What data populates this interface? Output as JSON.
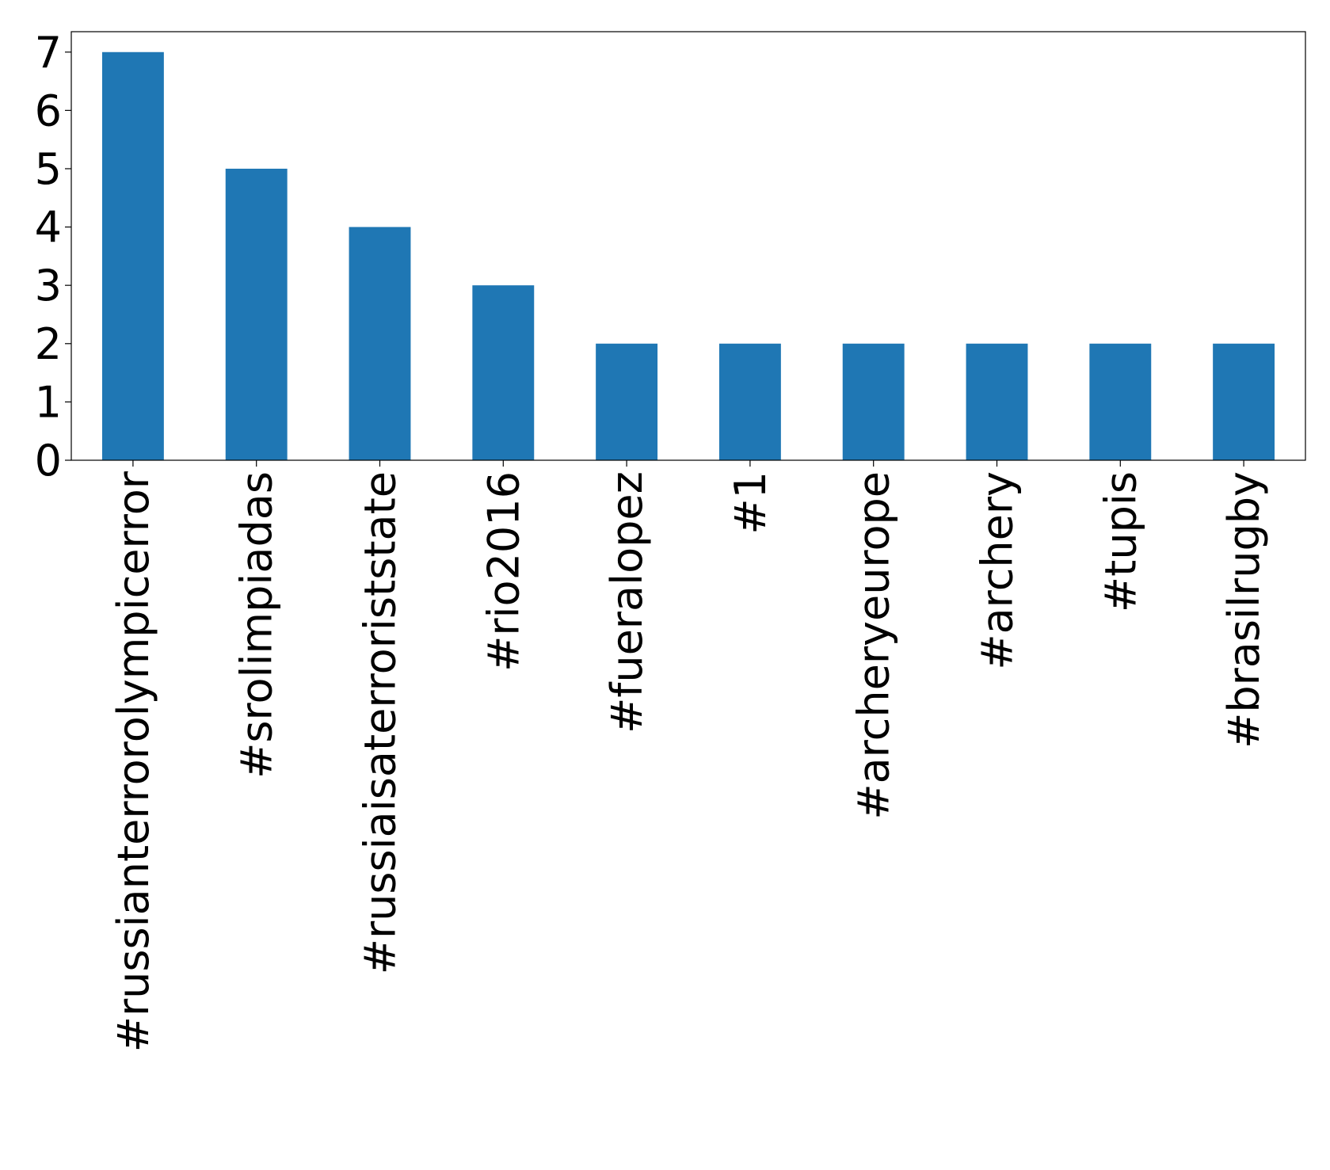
{
  "chart_data": {
    "type": "bar",
    "categories": [
      "#russianterrorolympicerror",
      "#srolimpiadas",
      "#russiaisaterroriststate",
      "#rio2016",
      "#fueralopez",
      "#1",
      "#archeryeurope",
      "#archery",
      "#tupis",
      "#brasilrugby"
    ],
    "values": [
      7,
      5,
      4,
      3,
      2,
      2,
      2,
      2,
      2,
      2
    ],
    "color": "#1f77b4",
    "ylim": [
      0,
      7.35
    ],
    "yticks": [
      0,
      1,
      2,
      3,
      4,
      5,
      6,
      7
    ],
    "grid": false
  }
}
